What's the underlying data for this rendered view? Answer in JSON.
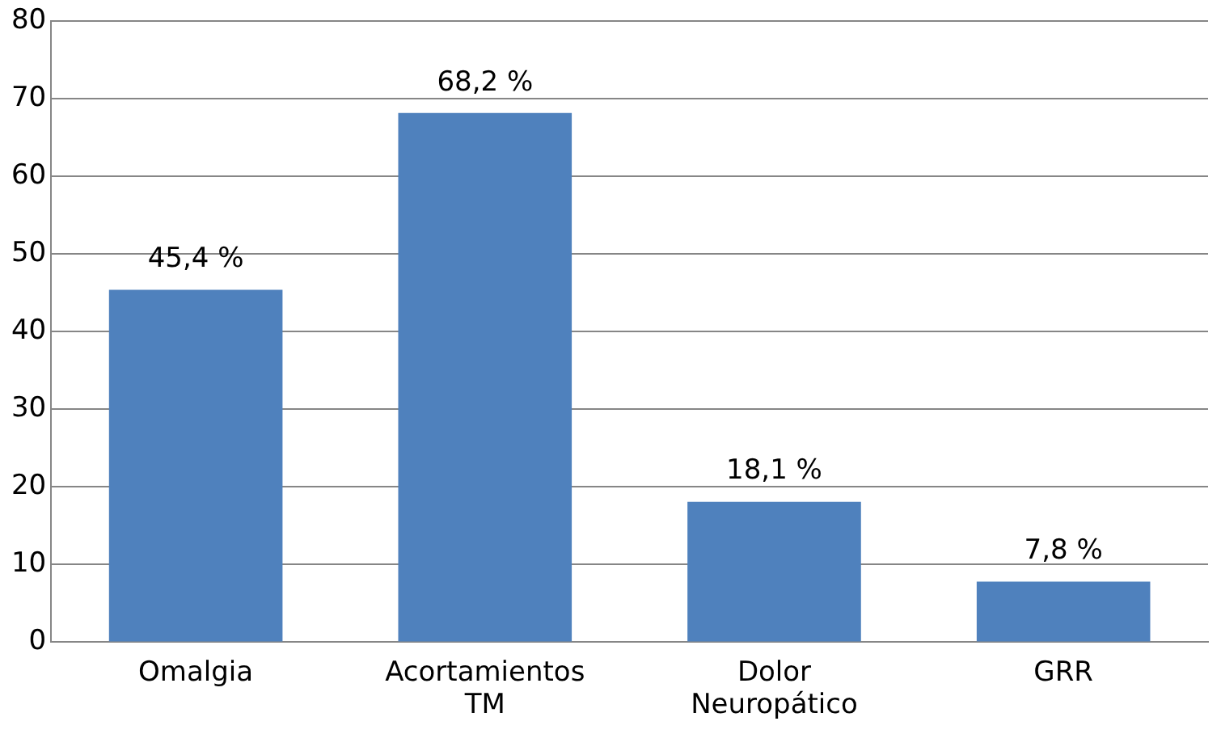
{
  "chart_data": {
    "type": "bar",
    "categories": [
      "Omalgia",
      "Acortamientos TM",
      "Dolor Neuropático",
      "GRR"
    ],
    "values": [
      45.4,
      68.2,
      18.1,
      7.8
    ],
    "color": "#4f81bd",
    "value_labels": [
      "45,4 %",
      "68,2 %",
      "18,1 %",
      "7,8 %"
    ],
    "ylim": [
      0,
      80
    ],
    "yticks": [
      0,
      10,
      20,
      30,
      40,
      50,
      60,
      70,
      80
    ],
    "grid": "y",
    "legend": false
  }
}
